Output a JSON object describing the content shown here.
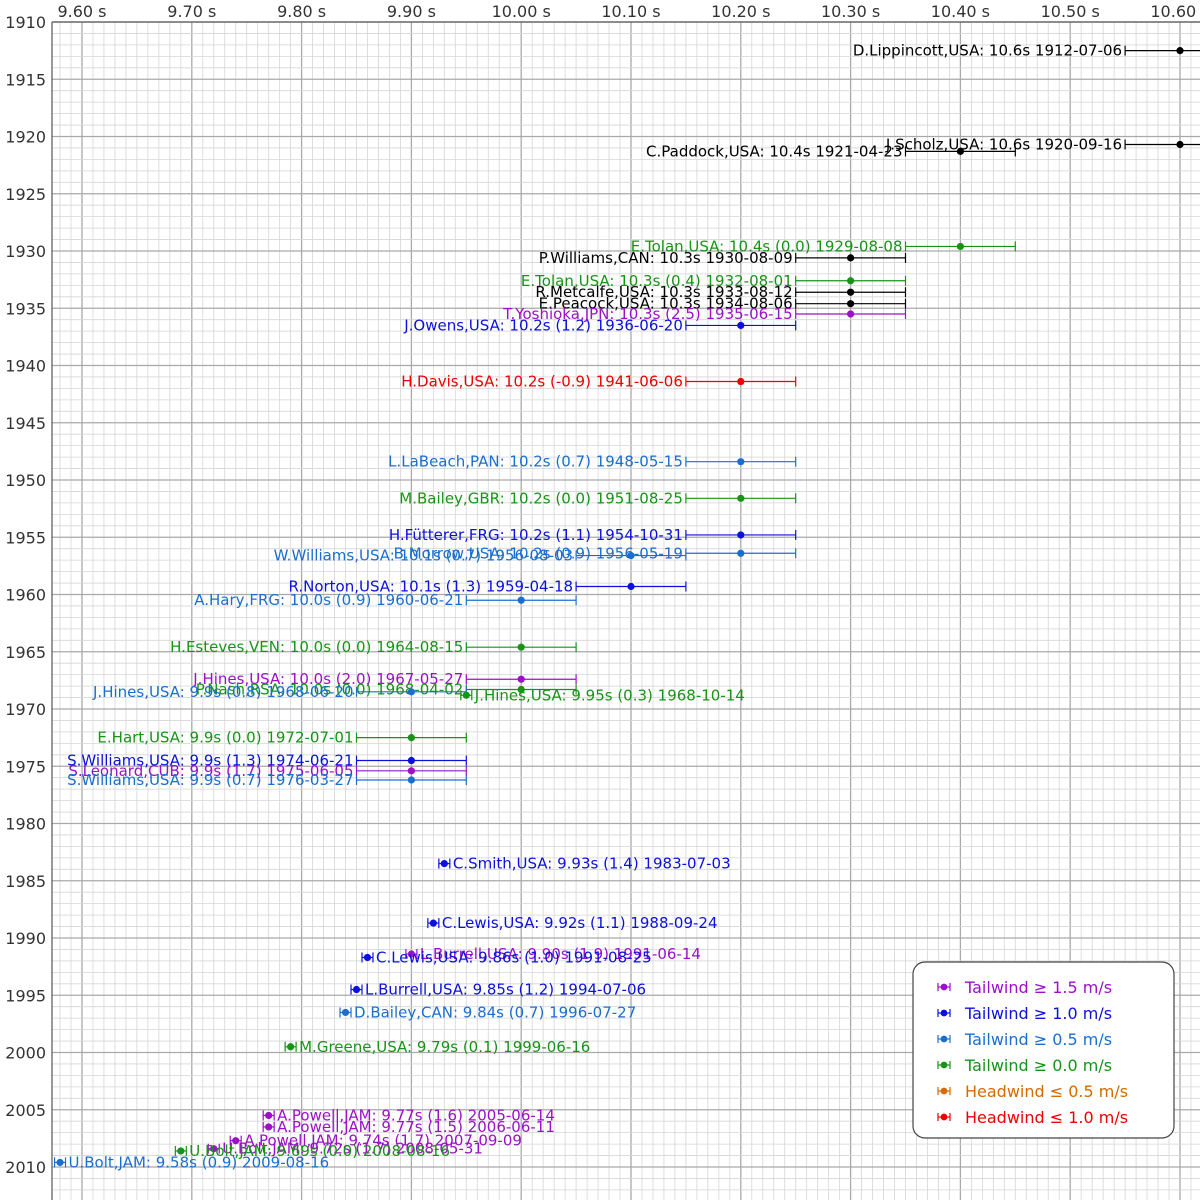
{
  "chart_data": {
    "type": "scatter",
    "title": "",
    "xlabel": "",
    "ylabel": "",
    "xlim": [
      9.55,
      10.65
    ],
    "ylim": [
      1910,
      2011
    ],
    "x_ticks": [
      9.6,
      9.7,
      9.8,
      9.9,
      10.0,
      10.1,
      10.2,
      10.3,
      10.4,
      10.5,
      10.6
    ],
    "x_tick_labels": [
      "9.60 s",
      "9.70 s",
      "9.80 s",
      "9.90 s",
      "10.00 s",
      "10.10 s",
      "10.20 s",
      "10.30 s",
      "10.40 s",
      "10.50 s",
      "10.60 s"
    ],
    "y_ticks": [
      1910,
      1915,
      1920,
      1925,
      1930,
      1935,
      1940,
      1945,
      1950,
      1955,
      1960,
      1965,
      1970,
      1975,
      1980,
      1985,
      1990,
      1995,
      2000,
      2005,
      2010
    ],
    "y_tick_labels": [
      "1910",
      "1915",
      "1920",
      "1925",
      "1930",
      "1935",
      "1940",
      "1945",
      "1950",
      "1955",
      "1960",
      "1965",
      "1970",
      "1975",
      "1980",
      "1985",
      "1990",
      "1995",
      "2000",
      "2005",
      "2010"
    ],
    "grid": true,
    "wind_colors": {
      "none": "#000000",
      "tail15": "#9b10c8",
      "tail10": "#0a10e0",
      "tail05": "#1a6ed0",
      "tail00": "#169416",
      "head05": "#d46a00",
      "head10": "#ee0000"
    },
    "legend": {
      "position": "bottom-right",
      "entries": [
        {
          "label": "Tailwind ≥ 1.5 m/s",
          "category": "tail15"
        },
        {
          "label": "Tailwind ≥ 1.0 m/s",
          "category": "tail10"
        },
        {
          "label": "Tailwind ≥ 0.5 m/s",
          "category": "tail05"
        },
        {
          "label": "Tailwind ≥ 0.0 m/s",
          "category": "tail00"
        },
        {
          "label": "Headwind ≤ 0.5 m/s",
          "category": "head05"
        },
        {
          "label": "Headwind ≤ 1.0 m/s",
          "category": "head10"
        }
      ]
    },
    "records": [
      {
        "label": "D.Lippincott,USA: 10.6s 1912-07-06",
        "time": 10.6,
        "year": 1912.5,
        "err": 0.05,
        "wind": "none",
        "side": "left"
      },
      {
        "label": "J.Scholz,USA: 10.6s 1920-09-16",
        "time": 10.6,
        "year": 1920.7,
        "err": 0.05,
        "wind": "none",
        "side": "left"
      },
      {
        "label": "C.Paddock,USA: 10.4s 1921-04-23",
        "time": 10.4,
        "year": 1921.3,
        "err": 0.05,
        "wind": "none",
        "side": "left"
      },
      {
        "label": "E.Tolan,USA: 10.4s (0.0) 1929-08-08",
        "time": 10.4,
        "year": 1929.6,
        "err": 0.05,
        "wind": "tail00",
        "side": "left"
      },
      {
        "label": "P.Williams,CAN: 10.3s 1930-08-09",
        "time": 10.3,
        "year": 1930.6,
        "err": 0.05,
        "wind": "none",
        "side": "left"
      },
      {
        "label": "E.Tolan,USA: 10.3s (0.4) 1932-08-01",
        "time": 10.3,
        "year": 1932.6,
        "err": 0.05,
        "wind": "tail00",
        "side": "left"
      },
      {
        "label": "R.Metcalfe,USA: 10.3s 1933-08-12",
        "time": 10.3,
        "year": 1933.6,
        "err": 0.05,
        "wind": "none",
        "side": "left"
      },
      {
        "label": "E.Peacock,USA: 10.3s 1934-08-06",
        "time": 10.3,
        "year": 1934.6,
        "err": 0.05,
        "wind": "none",
        "side": "left"
      },
      {
        "label": "T.Yoshioka,JPN: 10.3s (2.5) 1935-06-15",
        "time": 10.3,
        "year": 1935.5,
        "err": 0.05,
        "wind": "tail15",
        "side": "left"
      },
      {
        "label": "J.Owens,USA: 10.2s (1.2) 1936-06-20",
        "time": 10.2,
        "year": 1936.5,
        "err": 0.05,
        "wind": "tail10",
        "side": "left"
      },
      {
        "label": "H.Davis,USA: 10.2s (-0.9) 1941-06-06",
        "time": 10.2,
        "year": 1941.4,
        "err": 0.05,
        "wind": "head10",
        "side": "left"
      },
      {
        "label": "L.LaBeach,PAN: 10.2s (0.7) 1948-05-15",
        "time": 10.2,
        "year": 1948.4,
        "err": 0.05,
        "wind": "tail05",
        "side": "left"
      },
      {
        "label": "M.Bailey,GBR: 10.2s (0.0) 1951-08-25",
        "time": 10.2,
        "year": 1951.6,
        "err": 0.05,
        "wind": "tail00",
        "side": "left"
      },
      {
        "label": "H.Fütterer,FRG: 10.2s (1.1) 1954-10-31",
        "time": 10.2,
        "year": 1954.8,
        "err": 0.05,
        "wind": "tail10",
        "side": "left"
      },
      {
        "label": "B.Morrow,USA: 10.2s (0.9) 1956-05-19",
        "time": 10.2,
        "year": 1956.4,
        "err": 0.05,
        "wind": "tail05",
        "side": "left"
      },
      {
        "label": "W.Williams,USA: 10.1s (0.7) 1956-08-03",
        "time": 10.1,
        "year": 1956.6,
        "err": 0.05,
        "wind": "tail05",
        "side": "left"
      },
      {
        "label": "R.Norton,USA: 10.1s (1.3) 1959-04-18",
        "time": 10.1,
        "year": 1959.3,
        "err": 0.05,
        "wind": "tail10",
        "side": "left"
      },
      {
        "label": "A.Hary,FRG: 10.0s (0.9) 1960-06-21",
        "time": 10.0,
        "year": 1960.5,
        "err": 0.05,
        "wind": "tail05",
        "side": "left"
      },
      {
        "label": "H.Esteves,VEN: 10.0s (0.0) 1964-08-15",
        "time": 10.0,
        "year": 1964.6,
        "err": 0.05,
        "wind": "tail00",
        "side": "left"
      },
      {
        "label": "J.Hines,USA: 10.0s (2.0) 1967-05-27",
        "time": 10.0,
        "year": 1967.4,
        "err": 0.05,
        "wind": "tail15",
        "side": "left"
      },
      {
        "label": "P.Nash,RSA: 10.0s (0.0) 1968-04-02",
        "time": 10.0,
        "year": 1968.3,
        "err": 0.05,
        "wind": "tail00",
        "side": "left"
      },
      {
        "label": "J.Hines,USA: 9.9s (0.8) 1968-06-20",
        "time": 9.9,
        "year": 1968.5,
        "err": 0.05,
        "wind": "tail05",
        "side": "left"
      },
      {
        "label": "J.Hines,USA: 9.95s (0.3) 1968-10-14",
        "time": 9.95,
        "year": 1968.8,
        "err": 0.005,
        "wind": "tail00",
        "side": "right"
      },
      {
        "label": "E.Hart,USA: 9.9s (0.0) 1972-07-01",
        "time": 9.9,
        "year": 1972.5,
        "err": 0.05,
        "wind": "tail00",
        "side": "left"
      },
      {
        "label": "S.Williams,USA: 9.9s (1.3) 1974-06-21",
        "time": 9.9,
        "year": 1974.5,
        "err": 0.05,
        "wind": "tail10",
        "side": "left"
      },
      {
        "label": "S.Leonard,CUB: 9.9s (1.7) 1975-06-05",
        "time": 9.9,
        "year": 1975.4,
        "err": 0.05,
        "wind": "tail15",
        "side": "left"
      },
      {
        "label": "S.Williams,USA: 9.9s (0.7) 1976-03-27",
        "time": 9.9,
        "year": 1976.2,
        "err": 0.05,
        "wind": "tail05",
        "side": "left"
      },
      {
        "label": "C.Smith,USA: 9.93s (1.4) 1983-07-03",
        "time": 9.93,
        "year": 1983.5,
        "err": 0.005,
        "wind": "tail10",
        "side": "right"
      },
      {
        "label": "C.Lewis,USA: 9.92s (1.1) 1988-09-24",
        "time": 9.92,
        "year": 1988.7,
        "err": 0.005,
        "wind": "tail10",
        "side": "right"
      },
      {
        "label": "L.Burrell,USA: 9.90s (1.9) 1991-06-14",
        "time": 9.9,
        "year": 1991.4,
        "err": 0.005,
        "wind": "tail15",
        "side": "right"
      },
      {
        "label": "C.Lewis,USA: 9.86s (1.0) 1991-08-25",
        "time": 9.86,
        "year": 1991.7,
        "err": 0.005,
        "wind": "tail10",
        "side": "right"
      },
      {
        "label": "L.Burrell,USA: 9.85s (1.2) 1994-07-06",
        "time": 9.85,
        "year": 1994.5,
        "err": 0.005,
        "wind": "tail10",
        "side": "right"
      },
      {
        "label": "D.Bailey,CAN: 9.84s (0.7) 1996-07-27",
        "time": 9.84,
        "year": 1996.5,
        "err": 0.005,
        "wind": "tail05",
        "side": "right"
      },
      {
        "label": "M.Greene,USA: 9.79s (0.1) 1999-06-16",
        "time": 9.79,
        "year": 1999.5,
        "err": 0.005,
        "wind": "tail00",
        "side": "right"
      },
      {
        "label": "A.Powell,JAM: 9.77s (1.6) 2005-06-14",
        "time": 9.77,
        "year": 2005.5,
        "err": 0.005,
        "wind": "tail15",
        "side": "right"
      },
      {
        "label": "A.Powell,JAM: 9.77s (1.5) 2006-06-11",
        "time": 9.77,
        "year": 2006.5,
        "err": 0.005,
        "wind": "tail15",
        "side": "right"
      },
      {
        "label": "A.Powell,JAM: 9.74s (1.7) 2007-09-09",
        "time": 9.74,
        "year": 2007.7,
        "err": 0.005,
        "wind": "tail15",
        "side": "right"
      },
      {
        "label": "U.Bolt,JAM: 9.72s (1.7) 2008-05-31",
        "time": 9.72,
        "year": 2008.4,
        "err": 0.005,
        "wind": "tail15",
        "side": "right"
      },
      {
        "label": "U.Bolt,JAM: 9.69s (0.0) 2008-08-16",
        "time": 9.69,
        "year": 2008.6,
        "err": 0.005,
        "wind": "tail00",
        "side": "right"
      },
      {
        "label": "U.Bolt,JAM: 9.58s (0.9) 2009-08-16",
        "time": 9.58,
        "year": 2009.6,
        "err": 0.005,
        "wind": "tail05",
        "side": "right"
      }
    ]
  }
}
